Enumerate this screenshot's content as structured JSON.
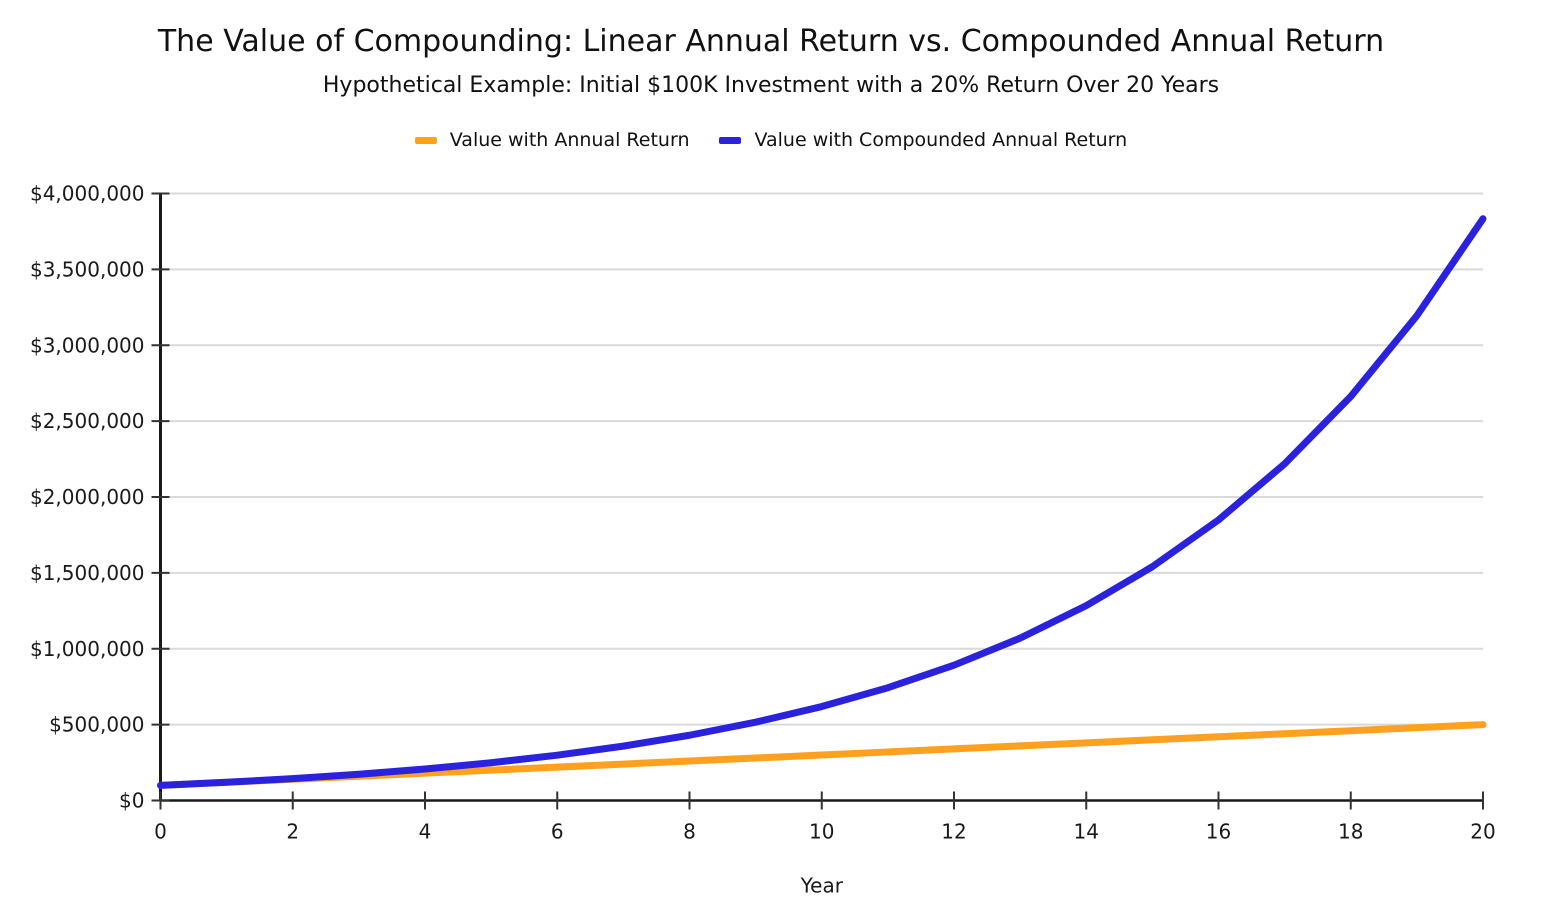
{
  "chart_data": {
    "type": "line",
    "title": "The Value of Compounding: Linear Annual Return vs. Compounded Annual Return",
    "subtitle": "Hypothetical Example: Initial $100K Investment with a 20% Return Over 20 Years",
    "xlabel": "Year",
    "ylabel": "",
    "xlim": [
      0,
      20
    ],
    "ylim": [
      0,
      4000000
    ],
    "grid": "horizontal",
    "legend_position": "top",
    "x": [
      0,
      1,
      2,
      3,
      4,
      5,
      6,
      7,
      8,
      9,
      10,
      11,
      12,
      13,
      14,
      15,
      16,
      17,
      18,
      19,
      20
    ],
    "series": [
      {
        "name": "Value with Annual Return",
        "color": "#FFA11E",
        "values": [
          100000,
          120000,
          140000,
          160000,
          180000,
          200000,
          220000,
          240000,
          260000,
          280000,
          300000,
          320000,
          340000,
          360000,
          380000,
          400000,
          420000,
          440000,
          460000,
          480000,
          500000
        ]
      },
      {
        "name": "Value with Compounded Annual Return",
        "color": "#2A22DD",
        "values": [
          100000,
          120000,
          144000,
          172800,
          207360,
          248832,
          298598,
          358318,
          429982,
          515978,
          619174,
          743008,
          891610,
          1069932,
          1283918,
          1540702,
          1848843,
          2218611,
          2662333,
          3194800,
          3833760
        ]
      }
    ],
    "xticks": {
      "values": [
        0,
        2,
        4,
        6,
        8,
        10,
        12,
        14,
        16,
        18,
        20
      ],
      "labels": [
        "0",
        "2",
        "4",
        "6",
        "8",
        "10",
        "12",
        "14",
        "16",
        "18",
        "20"
      ]
    },
    "yticks": {
      "values": [
        0,
        500000,
        1000000,
        1500000,
        2000000,
        2500000,
        3000000,
        3500000,
        4000000
      ],
      "labels": [
        "$0",
        "$500,000",
        "$1,000,000",
        "$1,500,000",
        "$2,000,000",
        "$2,500,000",
        "$3,000,000",
        "$3,500,000",
        "$4,000,000"
      ]
    }
  },
  "style": {
    "background": "#ffffff",
    "text_color": "#111111",
    "axis_color": "#1a1a1a",
    "tick_color": "#333333",
    "grid_color": "#d9d9d9"
  }
}
